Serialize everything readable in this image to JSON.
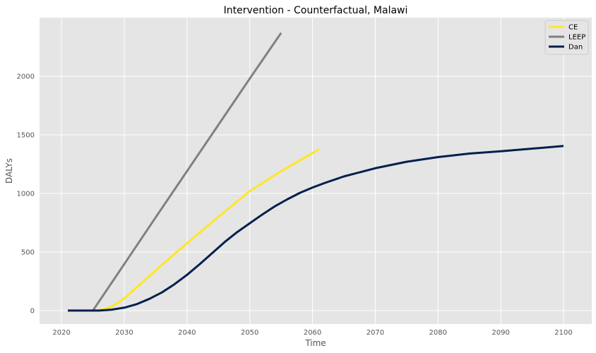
{
  "chart_data": {
    "type": "line",
    "title": "Intervention - Counterfactual, Malawi",
    "xlabel": "Time",
    "ylabel": "DALYs",
    "xlim": [
      2016.5,
      2104.5
    ],
    "ylim": [
      -115,
      2500
    ],
    "x_ticks": [
      2020,
      2030,
      2040,
      2050,
      2060,
      2070,
      2080,
      2090,
      2100
    ],
    "y_ticks": [
      0,
      500,
      1000,
      1500,
      2000
    ],
    "grid": true,
    "legend_position": "top-right",
    "background_color": "#e5e5e5",
    "series": [
      {
        "name": "CE",
        "color": "#fde725",
        "x": [
          2021,
          2025,
          2026,
          2027,
          2028,
          2029,
          2030,
          2031,
          2032,
          2034,
          2036,
          2040,
          2045,
          2050,
          2055,
          2061
        ],
        "y": [
          0,
          0,
          5,
          15,
          35,
          65,
          105,
          150,
          200,
          295,
          390,
          575,
          800,
          1020,
          1190,
          1375
        ]
      },
      {
        "name": "LEEP",
        "color": "#808080",
        "x": [
          2025,
          2030,
          2035,
          2040,
          2045,
          2050,
          2055
        ],
        "y": [
          0,
          397,
          795,
          1190,
          1585,
          1980,
          2370
        ]
      },
      {
        "name": "Dan",
        "color": "#00204d",
        "x": [
          2021,
          2026,
          2028,
          2030,
          2032,
          2034,
          2036,
          2038,
          2040,
          2042,
          2044,
          2046,
          2048,
          2050,
          2052,
          2054,
          2056,
          2058,
          2060,
          2062,
          2065,
          2070,
          2075,
          2080,
          2085,
          2090,
          2095,
          2100
        ],
        "y": [
          0,
          0,
          8,
          25,
          55,
          100,
          155,
          225,
          305,
          395,
          490,
          585,
          670,
          745,
          820,
          890,
          950,
          1005,
          1050,
          1090,
          1145,
          1215,
          1270,
          1310,
          1340,
          1360,
          1382,
          1405
        ]
      }
    ]
  }
}
